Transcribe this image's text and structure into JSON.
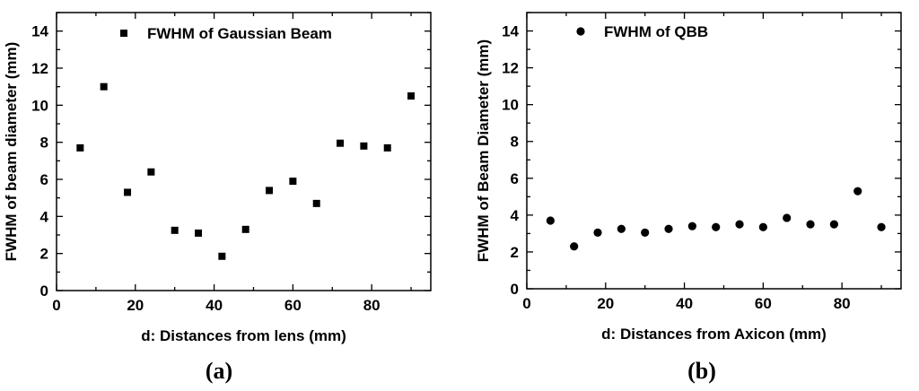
{
  "chart_data": [
    {
      "type": "scatter",
      "panel_label": "(a)",
      "xlabel": "d: Distances from lens (mm)",
      "ylabel": "FWHM of beam diameter (mm)",
      "xlim": [
        0,
        95
      ],
      "ylim": [
        0,
        15
      ],
      "xticks": [
        0,
        20,
        40,
        60,
        80
      ],
      "yticks": [
        0,
        2,
        4,
        6,
        8,
        10,
        12,
        14
      ],
      "grid": false,
      "legend_position": "top-center",
      "series": [
        {
          "name": "FWHM of Gaussian Beam",
          "marker": "square",
          "color": "#000000",
          "x": [
            6,
            12,
            18,
            24,
            30,
            36,
            42,
            48,
            54,
            60,
            66,
            72,
            78,
            84,
            90
          ],
          "y": [
            7.7,
            11.0,
            5.3,
            6.4,
            3.25,
            3.1,
            1.85,
            3.3,
            5.4,
            5.9,
            4.7,
            7.95,
            7.8,
            7.7,
            10.5
          ]
        }
      ]
    },
    {
      "type": "scatter",
      "panel_label": "(b)",
      "xlabel": "d: Distances from Axicon (mm)",
      "ylabel": "FWHM of Beam Diameter (mm)",
      "xlim": [
        0,
        95
      ],
      "ylim": [
        0,
        15
      ],
      "xticks": [
        0,
        20,
        40,
        60,
        80
      ],
      "yticks": [
        0,
        2,
        4,
        6,
        8,
        10,
        12,
        14
      ],
      "grid": false,
      "legend_position": "top-center",
      "series": [
        {
          "name": "FWHM of QBB",
          "marker": "circle",
          "color": "#000000",
          "x": [
            6,
            12,
            18,
            24,
            30,
            36,
            42,
            48,
            54,
            60,
            66,
            72,
            78,
            84,
            90
          ],
          "y": [
            3.7,
            2.3,
            3.05,
            3.25,
            3.05,
            3.25,
            3.4,
            3.35,
            3.5,
            3.35,
            3.85,
            3.5,
            3.5,
            5.3,
            3.35
          ]
        }
      ]
    }
  ]
}
